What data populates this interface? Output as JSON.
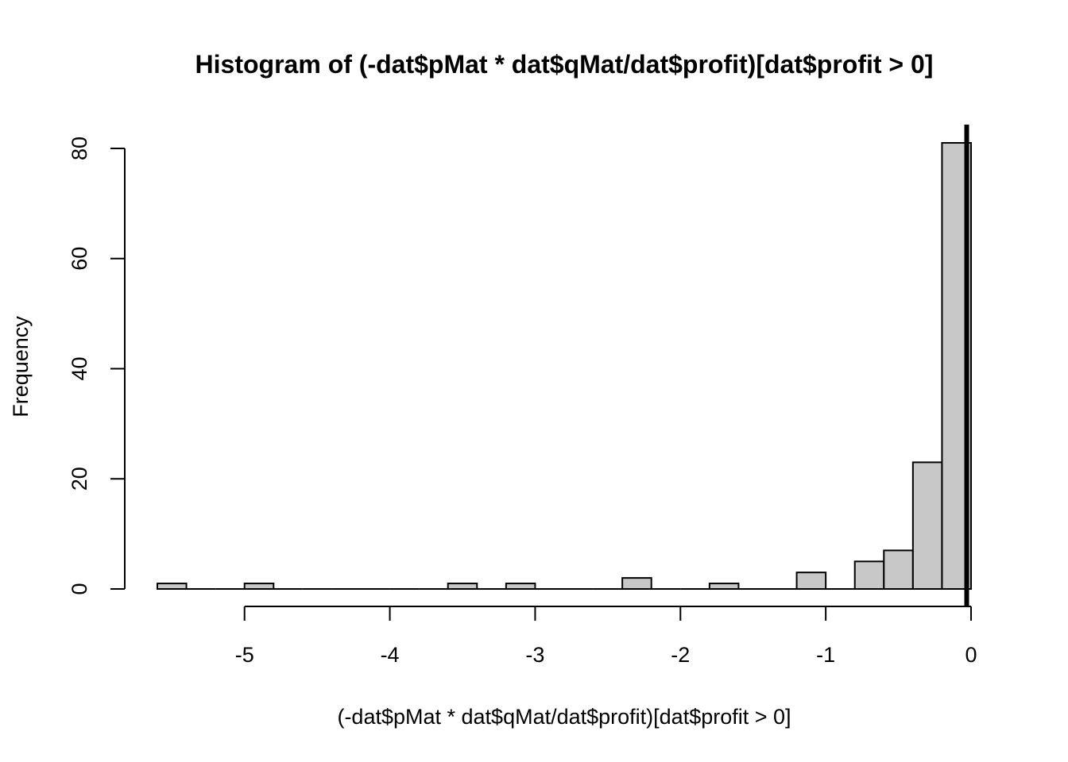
{
  "chart_data": {
    "type": "bar",
    "title": "Histogram of (-dat$pMat * dat$qMat/dat$profit)[dat$profit > 0]",
    "xlabel": "(-dat$pMat * dat$qMat/dat$profit)[dat$profit > 0]",
    "ylabel": "Frequency",
    "bin_width": 0.2,
    "bins": [
      {
        "start": -5.6,
        "end": -5.4,
        "count": 1
      },
      {
        "start": -5.4,
        "end": -5.2,
        "count": 0
      },
      {
        "start": -5.2,
        "end": -5.0,
        "count": 0
      },
      {
        "start": -5.0,
        "end": -4.8,
        "count": 1
      },
      {
        "start": -4.8,
        "end": -4.6,
        "count": 0
      },
      {
        "start": -4.6,
        "end": -4.4,
        "count": 0
      },
      {
        "start": -4.4,
        "end": -4.2,
        "count": 0
      },
      {
        "start": -4.2,
        "end": -4.0,
        "count": 0
      },
      {
        "start": -4.0,
        "end": -3.8,
        "count": 0
      },
      {
        "start": -3.8,
        "end": -3.6,
        "count": 0
      },
      {
        "start": -3.6,
        "end": -3.4,
        "count": 1
      },
      {
        "start": -3.4,
        "end": -3.2,
        "count": 0
      },
      {
        "start": -3.2,
        "end": -3.0,
        "count": 1
      },
      {
        "start": -3.0,
        "end": -2.8,
        "count": 0
      },
      {
        "start": -2.8,
        "end": -2.6,
        "count": 0
      },
      {
        "start": -2.6,
        "end": -2.4,
        "count": 0
      },
      {
        "start": -2.4,
        "end": -2.2,
        "count": 2
      },
      {
        "start": -2.2,
        "end": -2.0,
        "count": 0
      },
      {
        "start": -2.0,
        "end": -1.8,
        "count": 0
      },
      {
        "start": -1.8,
        "end": -1.6,
        "count": 1
      },
      {
        "start": -1.6,
        "end": -1.4,
        "count": 0
      },
      {
        "start": -1.4,
        "end": -1.2,
        "count": 0
      },
      {
        "start": -1.2,
        "end": -1.0,
        "count": 3
      },
      {
        "start": -1.0,
        "end": -0.8,
        "count": 0
      },
      {
        "start": -0.8,
        "end": -0.6,
        "count": 5
      },
      {
        "start": -0.6,
        "end": -0.4,
        "count": 7
      },
      {
        "start": -0.4,
        "end": -0.2,
        "count": 23
      },
      {
        "start": -0.2,
        "end": 0.0,
        "count": 81
      }
    ],
    "xlim": [
      -5.6,
      0.0
    ],
    "ylim": [
      0,
      81
    ],
    "x_ticks": [
      -5,
      -4,
      -3,
      -2,
      -1,
      0
    ],
    "x_tick_labels": [
      "-5",
      "-4",
      "-3",
      "-2",
      "-1",
      "0"
    ],
    "y_ticks": [
      0,
      20,
      40,
      60,
      80
    ],
    "y_tick_labels": [
      "0",
      "20",
      "40",
      "60",
      "80"
    ],
    "vertical_line_x": -0.03,
    "grid": false,
    "bar_fill": "#c8c8c8",
    "bar_stroke": "#000000"
  }
}
